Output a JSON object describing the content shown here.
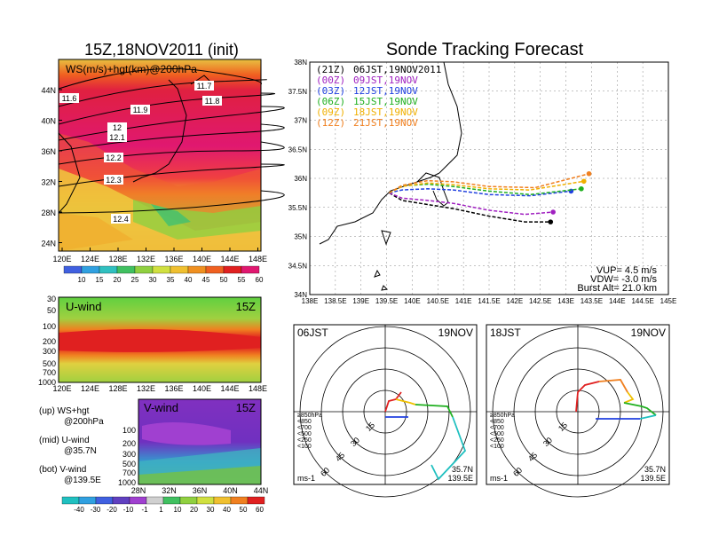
{
  "left_title": "15Z,18NOV2011 (init)",
  "right_title": "Sonde Tracking Forecast",
  "panel_top": {
    "label": "WS(m/s)+hgt(km)@200hPa",
    "lat_ticks": [
      "44N",
      "40N",
      "36N",
      "32N",
      "28N",
      "24N"
    ],
    "lon_ticks": [
      "120E",
      "124E",
      "128E",
      "132E",
      "136E",
      "140E",
      "144E",
      "148E"
    ],
    "contours": [
      "11.6",
      "11.7",
      "11.8",
      "11.9",
      "12",
      "12.1",
      "12.2",
      "12.3",
      "12.4"
    ],
    "colorbar_ticks": [
      "10",
      "15",
      "20",
      "25",
      "30",
      "35",
      "40",
      "45",
      "50",
      "55",
      "60"
    ]
  },
  "panel_u": {
    "label": "U-wind",
    "time": "15Z",
    "p_ticks": [
      "30",
      "50",
      "100",
      "200",
      "300",
      "500",
      "700",
      "1000"
    ],
    "lon_ticks": [
      "120E",
      "124E",
      "128E",
      "132E",
      "136E",
      "140E",
      "144E",
      "148E"
    ]
  },
  "panel_v": {
    "label": "V-wind",
    "time": "15Z",
    "p_ticks": [
      "100",
      "200",
      "300",
      "500",
      "700",
      "1000"
    ],
    "lat_ticks": [
      "28N",
      "32N",
      "36N",
      "40N",
      "44N"
    ]
  },
  "bottom_colorbar_ticks": [
    "-40",
    "-30",
    "-20",
    "-10",
    "-1",
    "1",
    "10",
    "20",
    "30",
    "40",
    "50",
    "60"
  ],
  "legend_left": [
    {
      "a": "(up) WS+hgt",
      "b": "@200hPa"
    },
    {
      "a": "(mid) U-wind",
      "b": "@35.7N"
    },
    {
      "a": "(bot) V-wind",
      "b": "@139.5E"
    }
  ],
  "track_legend": [
    {
      "utc": "(21Z)",
      "jst": "06JST,19NOV2011",
      "color": "#000000"
    },
    {
      "utc": "(00Z)",
      "jst": "09JST,19NOV",
      "color": "#a020c0"
    },
    {
      "utc": "(03Z)",
      "jst": "12JST,19NOV",
      "color": "#2040e0"
    },
    {
      "utc": "(06Z)",
      "jst": "15JST,19NOV",
      "color": "#20b020"
    },
    {
      "utc": "(09Z)",
      "jst": "18JST,19NOV",
      "color": "#f0b000"
    },
    {
      "utc": "(12Z)",
      "jst": "21JST,19NOV",
      "color": "#f08020"
    }
  ],
  "map_lat_ticks": [
    "38N",
    "37.5N",
    "37N",
    "36.5N",
    "36N",
    "35.5N",
    "35N",
    "34.5N",
    "34N"
  ],
  "map_lon_ticks": [
    "138E",
    "138.5E",
    "139E",
    "139.5E",
    "140E",
    "140.5E",
    "141E",
    "141.5E",
    "142E",
    "142.5E",
    "143E",
    "143.5E",
    "144E",
    "144.5E",
    "145E"
  ],
  "params": {
    "vup": "VUP= 4.5 m/s",
    "vdw": "VDW= -3.0 m/s",
    "burst": "Burst Alt= 21.0 km"
  },
  "hodo_left": {
    "time": "06JST",
    "date": "19NOV",
    "loc1": "35.7N",
    "loc2": "139.5E",
    "unit": "ms-1"
  },
  "hodo_right": {
    "time": "18JST",
    "date": "19NOV",
    "loc1": "35.7N",
    "loc2": "139.5E",
    "unit": "ms-1"
  },
  "hodo_rings": [
    "15",
    "30",
    "45",
    "60"
  ],
  "hodo_legend": [
    {
      "label": "≥850hPa",
      "color": "#e02020"
    },
    {
      "label": "<850",
      "color": "#f08020"
    },
    {
      "label": "<700",
      "color": "#f0c000"
    },
    {
      "label": "<500",
      "color": "#20b020"
    },
    {
      "label": "<250",
      "color": "#20c0c0"
    },
    {
      "label": "<100",
      "color": "#2040e0"
    }
  ],
  "chart_data": {
    "type": "line",
    "title": "Sonde Tracking Forecast",
    "xlabel": "",
    "ylabel": "",
    "xlim": [
      138,
      145
    ],
    "ylim": [
      34,
      38
    ],
    "series": [
      {
        "name": "(21Z) 06JST,19NOV2011",
        "color": "#000000",
        "x": [
          139.55,
          139.8,
          140.3,
          140.8,
          141.5,
          142.2,
          142.7
        ],
        "y": [
          35.75,
          35.62,
          35.55,
          35.48,
          35.35,
          35.25,
          35.25
        ]
      },
      {
        "name": "(00Z) 09JST,19NOV",
        "color": "#a020c0",
        "x": [
          139.55,
          139.8,
          140.3,
          140.8,
          141.5,
          142.2,
          142.75
        ],
        "y": [
          35.75,
          35.66,
          35.62,
          35.57,
          35.45,
          35.38,
          35.42
        ]
      },
      {
        "name": "(03Z) 12JST,19NOV",
        "color": "#2040e0",
        "x": [
          139.55,
          139.8,
          140.3,
          140.8,
          141.5,
          142.3,
          143.1
        ],
        "y": [
          35.75,
          35.8,
          35.82,
          35.8,
          35.72,
          35.7,
          35.78
        ]
      },
      {
        "name": "(06Z) 15JST,19NOV",
        "color": "#20b020",
        "x": [
          139.55,
          139.8,
          140.3,
          140.8,
          141.5,
          142.3,
          143.3
        ],
        "y": [
          35.75,
          35.87,
          35.9,
          35.86,
          35.78,
          35.72,
          35.82
        ]
      },
      {
        "name": "(09Z) 18JST,19NOV",
        "color": "#f0b000",
        "x": [
          139.55,
          139.8,
          140.3,
          140.8,
          141.5,
          142.3,
          143.35
        ],
        "y": [
          35.75,
          35.86,
          35.92,
          35.89,
          35.82,
          35.8,
          35.95
        ]
      },
      {
        "name": "(12Z) 21JST,19NOV",
        "color": "#f08020",
        "x": [
          139.55,
          139.8,
          140.3,
          140.8,
          141.5,
          142.4,
          143.45
        ],
        "y": [
          35.75,
          35.88,
          35.96,
          35.94,
          35.86,
          35.84,
          36.08
        ]
      }
    ]
  }
}
